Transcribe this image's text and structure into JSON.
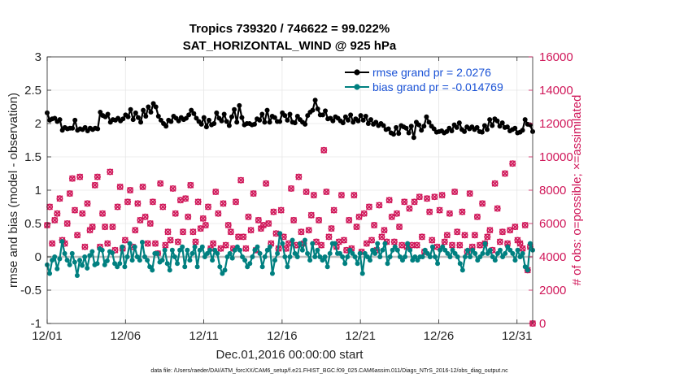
{
  "chart_data": {
    "type": "line",
    "title": "Tropics 739320 / 746622 = 99.022%",
    "subtitle": "SAT_HORIZONTAL_WIND @ 925 hPa",
    "xlabel": "Dec.01,2016 00:00:00 start",
    "ylabel_left": "rmse and bias (model - observation)",
    "ylabel_right": "# of obs: o=possible; ×=assimilated",
    "xlim": [
      0,
      31
    ],
    "ylim_left": [
      -1,
      3
    ],
    "ylim_right": [
      0,
      16000
    ],
    "x_ticks": [
      0,
      5,
      10,
      15,
      20,
      25,
      30
    ],
    "x_tick_labels": [
      "12/01",
      "12/06",
      "12/11",
      "12/16",
      "12/21",
      "12/26",
      "12/31"
    ],
    "y_ticks_left": [
      "-1",
      "-0.5",
      "0",
      "0.5",
      "1",
      "1.5",
      "2",
      "2.5",
      "3"
    ],
    "y_ticks_right": [
      "0",
      "2000",
      "4000",
      "6000",
      "8000",
      "10000",
      "12000",
      "14000",
      "16000"
    ],
    "grid": true,
    "legend_position": "top-right",
    "footer": "data file: /Users/raeder/DAI/ATM_forcXX/CAM6_setup/f.e21.FHIST_BGC.f09_025.CAM6assim.011/Diags_NTrS_2016-12/obs_diag_output.nc",
    "colors": {
      "rmse": "#000000",
      "bias": "#008080",
      "obs": "#d0185a",
      "zero_line": "#bfbfbf",
      "legend_text": "#1a52d6"
    },
    "series": [
      {
        "name": "rmse grand pr = 2.0276",
        "axis": "left",
        "values": [
          2.16,
          2.05,
          2.07,
          2.08,
          2.03,
          2.06,
          1.9,
          1.94,
          1.92,
          1.93,
          1.93,
          2.05,
          1.9,
          1.92,
          1.91,
          1.94,
          1.89,
          1.93,
          1.91,
          1.93,
          1.92,
          2.17,
          2.12,
          2.1,
          2.14,
          2.02,
          2.06,
          2.05,
          2.08,
          2.04,
          2.07,
          2.13,
          2.1,
          2.21,
          2.06,
          2.16,
          2.09,
          2.02,
          2.2,
          2.11,
          2.25,
          2.17,
          2.3,
          2.25,
          2.11,
          2.05,
          2.0,
          1.96,
          2.05,
          2.03,
          2.11,
          2.08,
          2.04,
          2.09,
          2.06,
          2.08,
          2.13,
          2.2,
          2.15,
          2.08,
          2.03,
          1.99,
          2.09,
          1.95,
          2.05,
          1.98,
          2.0,
          2.16,
          2.08,
          2.04,
          2.14,
          2.03,
          1.97,
          2.1,
          2.21,
          2.02,
          2.27,
          2.09,
          1.98,
          2.0,
          2.0,
          1.98,
          1.99,
          2.07,
          2.05,
          2.14,
          2.02,
          2.2,
          2.02,
          2.11,
          2.09,
          2.03,
          2.03,
          2.16,
          2.12,
          2.05,
          2.14,
          2.02,
          2.01,
          2.11,
          2.06,
          2.02,
          1.99,
          2.12,
          2.17,
          2.2,
          2.35,
          2.22,
          2.13,
          2.13,
          2.19,
          2.07,
          2.08,
          2.04,
          2.1,
          2.08,
          2.04,
          2.01,
          2.1,
          2.05,
          2.13,
          2.02,
          2.07,
          2.04,
          2.12,
          2.05,
          2.11,
          2.0,
          2.06,
          1.99,
          2.02,
          1.97,
          2.0,
          1.97,
          1.91,
          1.92,
          1.86,
          1.84,
          1.94,
          1.85,
          1.97,
          1.95,
          1.93,
          1.86,
          1.96,
          1.79,
          2.02,
          1.98,
          1.9,
          1.96,
          2.1,
          2.02,
          1.96,
          1.92,
          1.87,
          1.88,
          1.89,
          1.86,
          1.88,
          1.93,
          1.89,
          1.98,
          1.94,
          2.01,
          1.91,
          1.88,
          1.95,
          1.92,
          1.95,
          1.91,
          1.94,
          1.88,
          1.87,
          1.97,
          1.91,
          2.06,
          1.97,
          2.07,
          2.04,
          1.96,
          2.01,
          1.94,
          1.95,
          1.89,
          1.91,
          1.93,
          1.86,
          1.87,
          1.9,
          2.06,
          1.99,
          1.98,
          1.88
        ]
      },
      {
        "name": "bias grand pr = -0.014769",
        "axis": "left",
        "values": [
          -0.12,
          -0.25,
          -0.05,
          0.0,
          -0.18,
          -0.03,
          0.23,
          0.05,
          -0.05,
          -0.12,
          0.05,
          -0.08,
          -0.28,
          -0.05,
          -0.13,
          0.0,
          -0.17,
          0.02,
          0.08,
          -0.12,
          -0.1,
          0.12,
          0.1,
          -0.12,
          -0.06,
          0.08,
          0.06,
          -0.1,
          -0.15,
          -0.1,
          0.15,
          -0.15,
          0.0,
          0.2,
          -0.05,
          0.15,
          0.0,
          -0.05,
          0.22,
          0.0,
          -0.05,
          -0.15,
          -0.2,
          0.05,
          0.05,
          -0.08,
          -0.05,
          0.1,
          -0.1,
          -0.2,
          0.1,
          0.0,
          -0.1,
          0.1,
          0.15,
          -0.15,
          0.1,
          -0.05,
          0.05,
          0.15,
          -0.15,
          0.1,
          0.15,
          0.0,
          0.05,
          0.1,
          -0.05,
          0.1,
          0.05,
          -0.15,
          -0.25,
          -0.2,
          0.0,
          0.05,
          -0.02,
          0.1,
          0.15,
          0.1,
          0.0,
          -0.05,
          -0.15,
          -0.1,
          0.0,
          0.1,
          0.15,
          0.05,
          -0.15,
          0.0,
          0.1,
          0.15,
          -0.25,
          -0.05,
          0.05,
          0.35,
          0.2,
          0.0,
          -0.15,
          0.0,
          0.25,
          0.05,
          0.0,
          0.2,
          0.1,
          0.25,
          0.05,
          -0.05,
          0.2,
          0.0,
          0.1,
          0.0,
          -0.05,
          0.0,
          -0.15,
          0.05,
          0.2,
          0.2,
          0.05,
          0.05,
          0.0,
          -0.1,
          0.0,
          0.1,
          0.05,
          0.0,
          -0.1,
          0.05,
          -0.25,
          0.05,
          0.0,
          -0.05,
          0.1,
          0.05,
          0.2,
          0.0,
          0.1,
          0.2,
          -0.1,
          0.0,
          0.1,
          0.15,
          0.1,
          0.0,
          -0.05,
          0.0,
          0.2,
          0.1,
          -0.05,
          0.0,
          -0.05,
          0.0,
          0.0,
          0.1,
          0.05,
          0.0,
          0.15,
          0.0,
          -0.1,
          0.1,
          0.15,
          0.1,
          0.05,
          0.0,
          0.1,
          0.05,
          0.0,
          -0.1,
          -0.2,
          0.0,
          0.1,
          0.0,
          0.1,
          0.05,
          -0.05,
          0.0,
          0.05,
          0.2,
          0.05,
          0.1,
          0.0,
          -0.05,
          0.05,
          0.1,
          0.0,
          0.05,
          0.15,
          0.1,
          0.05,
          -0.05,
          0.1,
          0.0,
          0.05,
          -0.15,
          -0.2,
          0.2,
          0.1
        ]
      },
      {
        "name": "obs possible",
        "axis": "right",
        "values": [
          5900,
          7000,
          4800,
          6200,
          6600,
          7500,
          5000,
          4800,
          6000,
          7800,
          8700,
          6800,
          5300,
          8800,
          6600,
          4600,
          7200,
          5600,
          5800,
          8300,
          8800,
          4600,
          6600,
          5800,
          4800,
          9100,
          5800,
          4400,
          7000,
          8200,
          4500,
          5000,
          7300,
          8000,
          4600,
          5600,
          7200,
          6200,
          8200,
          6400,
          4800,
          6000,
          7300,
          4800,
          4200,
          8400,
          7000,
          4700,
          5500,
          5000,
          8100,
          6600,
          4900,
          7400,
          5500,
          7500,
          6400,
          8300,
          5500,
          4900,
          7300,
          5700,
          6300,
          5900,
          7000,
          4500,
          4800,
          7900,
          6600,
          4500,
          7200,
          4700,
          5900,
          5500,
          4500,
          7300,
          5200,
          8600,
          5200,
          4500,
          6400,
          5600,
          7800,
          4400,
          6200,
          5700,
          5900,
          8400,
          6000,
          4800,
          6700,
          5400,
          4500,
          6800,
          5200,
          4500,
          4800,
          8100,
          6200,
          4700,
          8800,
          5500,
          4800,
          7900,
          5600,
          6500,
          7700,
          4900,
          6200,
          4700,
          10400,
          7900,
          5200,
          5700,
          6800,
          4600,
          4900,
          7700,
          5000,
          4400,
          6200,
          4500,
          7700,
          5800,
          6400,
          4300,
          6600,
          4800,
          7000,
          5000,
          5900,
          4400,
          7100,
          5200,
          5600,
          4900,
          7400,
          6400,
          4900,
          6600,
          5800,
          4700,
          7300,
          4600,
          6900,
          4700,
          7300,
          4700,
          7600,
          5200,
          4300,
          7500,
          6700,
          5000,
          7600,
          4600,
          6800,
          7700,
          4900,
          5300,
          6600,
          4700,
          7900,
          5500,
          4700,
          6700,
          5300,
          4300,
          7800,
          4600,
          5300,
          6400,
          4700,
          7200,
          4800,
          5200,
          5600,
          4400,
          8400,
          6900,
          4900,
          5500,
          9000,
          4800,
          5600,
          9600,
          5800,
          5000,
          4800,
          4500,
          5900,
          3200,
          4600,
          0
        ]
      }
    ]
  },
  "legend": {
    "rmse": "rmse grand pr = 2.0276",
    "bias": "bias grand pr = -0.014769"
  }
}
